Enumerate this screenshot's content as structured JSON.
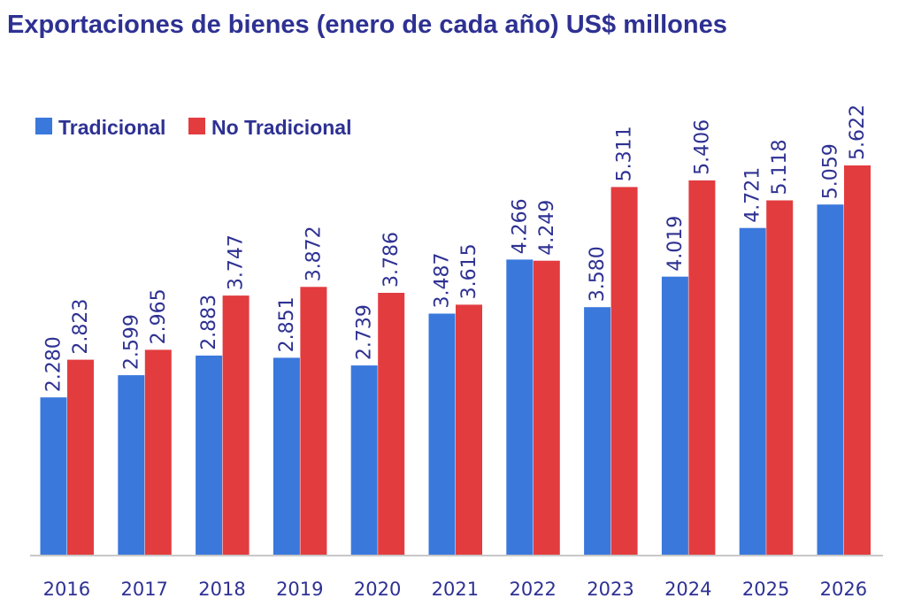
{
  "chart_data": {
    "type": "bar",
    "title": "Exportaciones de bienes (enero de cada año) US$ millones",
    "xlabel": "",
    "ylabel": "",
    "categories": [
      "2016",
      "2017",
      "2018",
      "2019",
      "2020",
      "2021",
      "2022",
      "2023",
      "2024",
      "2025",
      "2026"
    ],
    "series": [
      {
        "name": "Tradicional",
        "color": "#3a78dc",
        "values": [
          2280,
          2599,
          2883,
          2851,
          2739,
          3487,
          4266,
          3580,
          4019,
          4721,
          5059
        ],
        "labels": [
          "2.280",
          "2.599",
          "2.883",
          "2.851",
          "2.739",
          "3.487",
          "4.266",
          "3.580",
          "4.019",
          "4.721",
          "5.059"
        ]
      },
      {
        "name": "No Tradicional",
        "color": "#e23c3f",
        "values": [
          2823,
          2965,
          3747,
          3872,
          3786,
          3615,
          4249,
          5311,
          5406,
          5118,
          5622
        ],
        "labels": [
          "2.823",
          "2.965",
          "3.747",
          "3.872",
          "3.786",
          "3.615",
          "4.249",
          "5.311",
          "5.406",
          "5.118",
          "5.622"
        ]
      }
    ],
    "ylim": [
      0,
      5622
    ],
    "grid": false,
    "legend": "top-left",
    "axis_color": "#c8c8c8",
    "text_color": "#2e3192"
  }
}
